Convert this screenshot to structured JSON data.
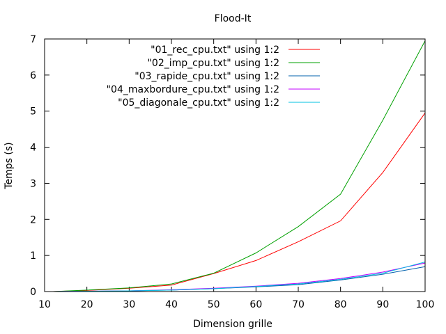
{
  "chart_data": {
    "type": "line",
    "title": "Flood-It",
    "xlabel": "Dimension grille",
    "ylabel": "Temps (s)",
    "xlim": [
      10,
      100
    ],
    "ylim": [
      0,
      7
    ],
    "xticks": [
      10,
      20,
      30,
      40,
      50,
      60,
      70,
      80,
      90,
      100
    ],
    "yticks": [
      0,
      1,
      2,
      3,
      4,
      5,
      6,
      7
    ],
    "grid": false,
    "legend_position": "top-right",
    "series": [
      {
        "name": "\"01_rec_cpu.txt\" using 1:2",
        "color": "#ff0000",
        "x": [
          12,
          20,
          30,
          40,
          50,
          60,
          70,
          80,
          90,
          100
        ],
        "y": [
          0.0,
          0.03,
          0.09,
          0.18,
          0.5,
          0.86,
          1.38,
          1.96,
          3.3,
          4.95
        ]
      },
      {
        "name": "\"02_imp_cpu.txt\" using 1:2",
        "color": "#00a000",
        "x": [
          12,
          20,
          30,
          40,
          50,
          60,
          70,
          80,
          90,
          100
        ],
        "y": [
          0.0,
          0.04,
          0.1,
          0.21,
          0.51,
          1.07,
          1.8,
          2.7,
          4.75,
          6.95
        ]
      },
      {
        "name": "\"03_rapide_cpu.txt\" using 1:2",
        "color": "#0060ad",
        "x": [
          12,
          20,
          30,
          40,
          50,
          60,
          70,
          80,
          90,
          100
        ],
        "y": [
          0.0,
          0.01,
          0.02,
          0.04,
          0.08,
          0.13,
          0.19,
          0.32,
          0.48,
          0.69
        ]
      },
      {
        "name": "\"04_maxbordure_cpu.txt\" using 1:2",
        "color": "#c000ff",
        "x": [
          12,
          20,
          30,
          40,
          50,
          60,
          70,
          80,
          90,
          100
        ],
        "y": [
          0.0,
          0.01,
          0.02,
          0.05,
          0.09,
          0.15,
          0.23,
          0.36,
          0.54,
          0.79
        ]
      },
      {
        "name": "\"05_diagonale_cpu.txt\" using 1:2",
        "color": "#00c0e0",
        "x": [
          12,
          20,
          30,
          40,
          50,
          60,
          70,
          80,
          90,
          100
        ],
        "y": [
          0.0,
          0.01,
          0.02,
          0.04,
          0.08,
          0.14,
          0.21,
          0.34,
          0.51,
          0.82
        ]
      }
    ]
  }
}
